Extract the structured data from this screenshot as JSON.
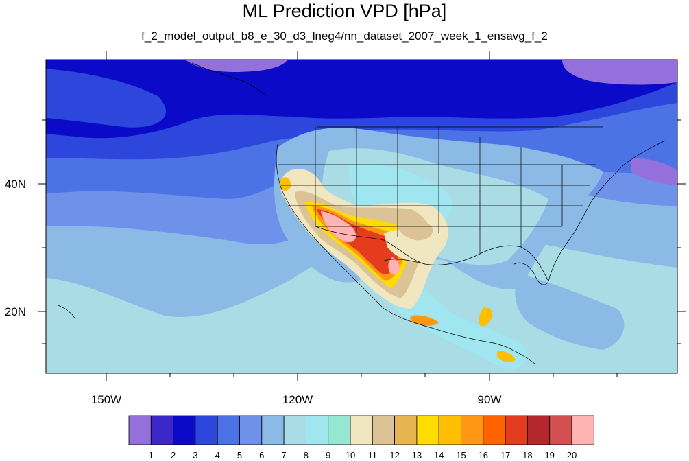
{
  "title": "ML Prediction VPD [hPa]",
  "subtitle": "f_2_model_output_b8_e_30_d3_lneg4/nn_dataset_2007_week_1_ensavg_f_2",
  "axes": {
    "x_ticks": [
      {
        "lon": -150,
        "label": "150W"
      },
      {
        "lon": -120,
        "label": "120W"
      },
      {
        "lon": -90,
        "label": "90W"
      }
    ],
    "y_ticks": [
      {
        "lat": 40,
        "label": "40N"
      },
      {
        "lat": 20,
        "label": "20N"
      }
    ],
    "lon_range": [
      -159.5,
      -61
    ],
    "lat_range": [
      11,
      60
    ]
  },
  "colorbar": {
    "labels": [
      "1",
      "2",
      "3",
      "4",
      "5",
      "6",
      "7",
      "8",
      "9",
      "10",
      "11",
      "12",
      "13",
      "14",
      "15",
      "16",
      "17",
      "18",
      "19",
      "20"
    ],
    "colors": [
      "#9370DB",
      "#3C28C8",
      "#0A0AC8",
      "#2D46DC",
      "#4B73E6",
      "#6E91EA",
      "#8CBAE6",
      "#AADCE6",
      "#A0E6F0",
      "#96E6D2",
      "#F0E6C0",
      "#DCC396",
      "#E6B450",
      "#FFDC00",
      "#FFBE00",
      "#FF9614",
      "#FF6400",
      "#E63C1E",
      "#B4282D",
      "#D25050",
      "#FFB4B4"
    ]
  }
}
